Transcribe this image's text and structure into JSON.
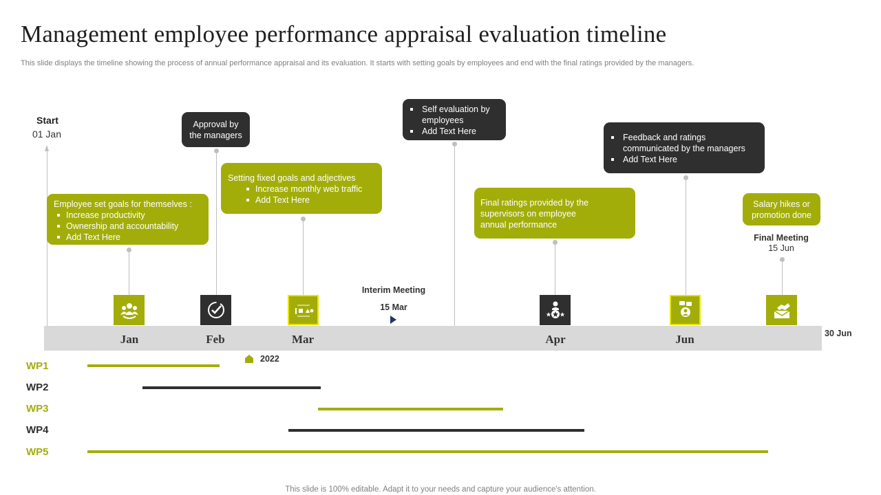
{
  "title": "Management employee performance appraisal evaluation timeline",
  "subtitle": "This slide displays the timeline showing the process of  annual performance appraisal and its evaluation. It starts with setting goals by employees and end with the final ratings provided by the managers.",
  "footer": "This slide is 100% editable. Adapt it to your needs and capture your audience's attention.",
  "start": {
    "label": "Start",
    "date": "01 Jan"
  },
  "end_label": "30 Jun",
  "months": [
    "Jan",
    "Feb",
    "Mar",
    "Apr",
    "Jun"
  ],
  "year": "2022",
  "colors": {
    "olive": "#a3ad0a",
    "dark": "#2f2f2f",
    "axis": "#d9d9d9",
    "connector": "#bfbfbf",
    "marker": "#1f3864"
  },
  "bubbles": {
    "goals": {
      "heading": "Employee set goals for themselves :",
      "items": [
        "Increase productivity",
        "Ownership and accountability",
        "Add Text Here"
      ]
    },
    "approval": {
      "line1": "Approval  by",
      "line2": "the managers"
    },
    "fixed_goals": {
      "heading": "Setting fixed goals and adjectives",
      "items": [
        "Increase monthly web traffic",
        "Add Text Here"
      ]
    },
    "self_eval": {
      "items": [
        "Self evaluation  by employees",
        "Add Text Here"
      ]
    },
    "final_ratings": {
      "line1": "Final ratings provided  by the",
      "line2": "supervisors  on employee",
      "line3": "annual performance"
    },
    "feedback": {
      "items": [
        "Feedback and ratings communicated by the managers",
        "Add Text Here"
      ]
    },
    "salary": {
      "line1": "Salary hikes or",
      "line2": "promotion done"
    }
  },
  "icons": [
    "team-icon",
    "checkmark-circle-icon",
    "shapes-icon",
    "award-person-icon",
    "chat-person-icon",
    "handshake-icon"
  ],
  "interim": {
    "label": "Interim Meeting",
    "date": "15 Mar"
  },
  "final": {
    "label": "Final Meeting",
    "date": "15 Jun"
  },
  "work_packages": [
    {
      "label": "WP1",
      "color": "#a3ad0a"
    },
    {
      "label": "WP2",
      "color": "#2f2f2f"
    },
    {
      "label": "WP3",
      "color": "#a3ad0a"
    },
    {
      "label": "WP4",
      "color": "#2f2f2f"
    },
    {
      "label": "WP5",
      "color": "#a3ad0a"
    }
  ]
}
